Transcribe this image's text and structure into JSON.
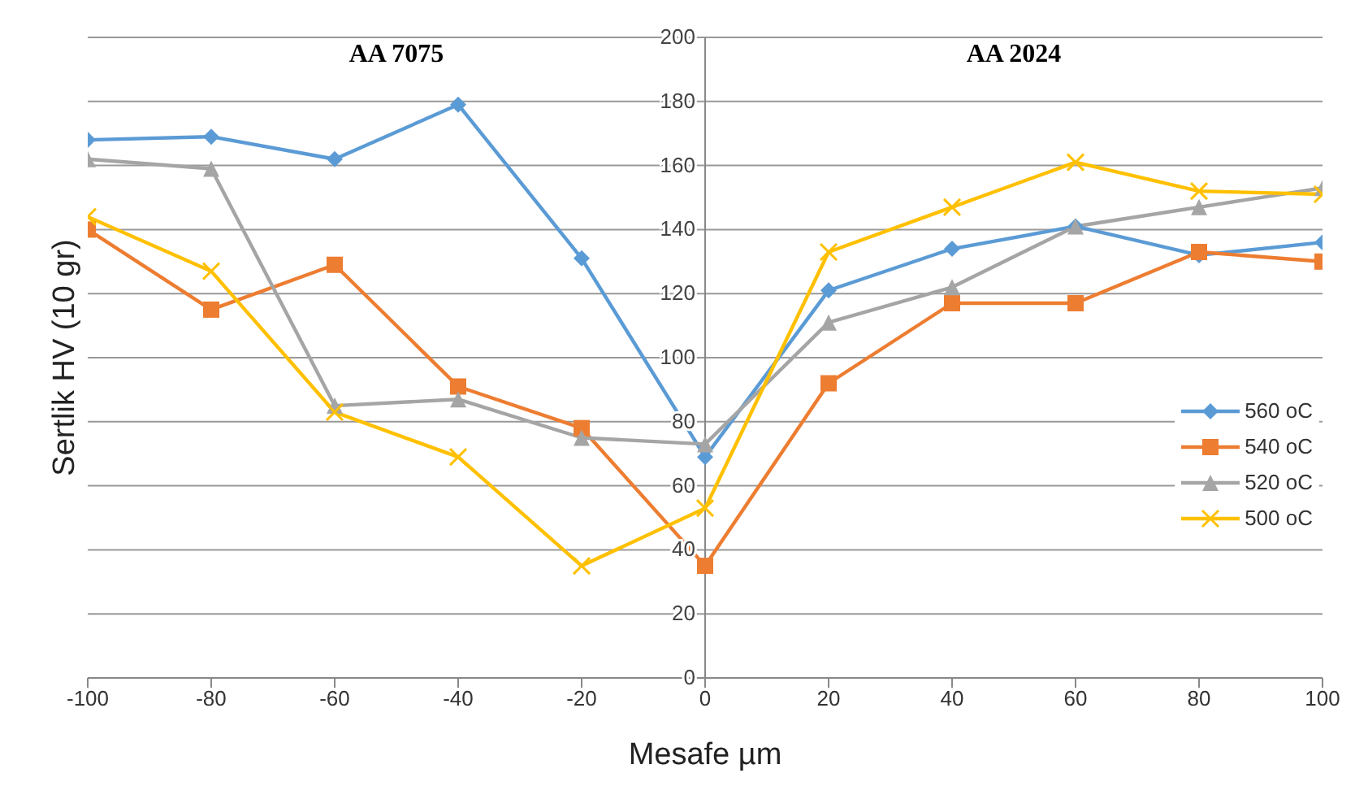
{
  "chart_data": {
    "type": "line",
    "xlabel": "Mesafe µm",
    "ylabel": "Sertlik HV (10 gr)",
    "annotations": [
      "AA 7075",
      "AA 2024"
    ],
    "x": [
      -100,
      -80,
      -60,
      -40,
      -20,
      0,
      20,
      40,
      60,
      80,
      100
    ],
    "series": [
      {
        "name": "560 oC",
        "color": "#5b9bd5",
        "marker": "diamond",
        "values": [
          168,
          169,
          162,
          179,
          131,
          69,
          121,
          134,
          141,
          132,
          136
        ]
      },
      {
        "name": "540 oC",
        "color": "#ed7d31",
        "marker": "square",
        "values": [
          140,
          115,
          129,
          91,
          78,
          35,
          92,
          117,
          117,
          133,
          130
        ]
      },
      {
        "name": "520 oC",
        "color": "#a5a5a5",
        "marker": "triangle",
        "values": [
          162,
          159,
          85,
          87,
          75,
          73,
          111,
          122,
          141,
          147,
          153
        ]
      },
      {
        "name": "500 oC",
        "color": "#ffc000",
        "marker": "cross",
        "values": [
          144,
          127,
          83,
          69,
          35,
          53,
          133,
          147,
          161,
          152,
          151
        ]
      }
    ],
    "xlim": [
      -100,
      100
    ],
    "xticks": [
      -100,
      -80,
      -60,
      -40,
      -20,
      0,
      20,
      40,
      60,
      80,
      100
    ],
    "ylim": [
      0,
      200
    ],
    "yticks": [
      0,
      20,
      40,
      60,
      80,
      100,
      120,
      140,
      160,
      180,
      200
    ],
    "grid": "y",
    "legend": "right",
    "line_style": "solid"
  }
}
